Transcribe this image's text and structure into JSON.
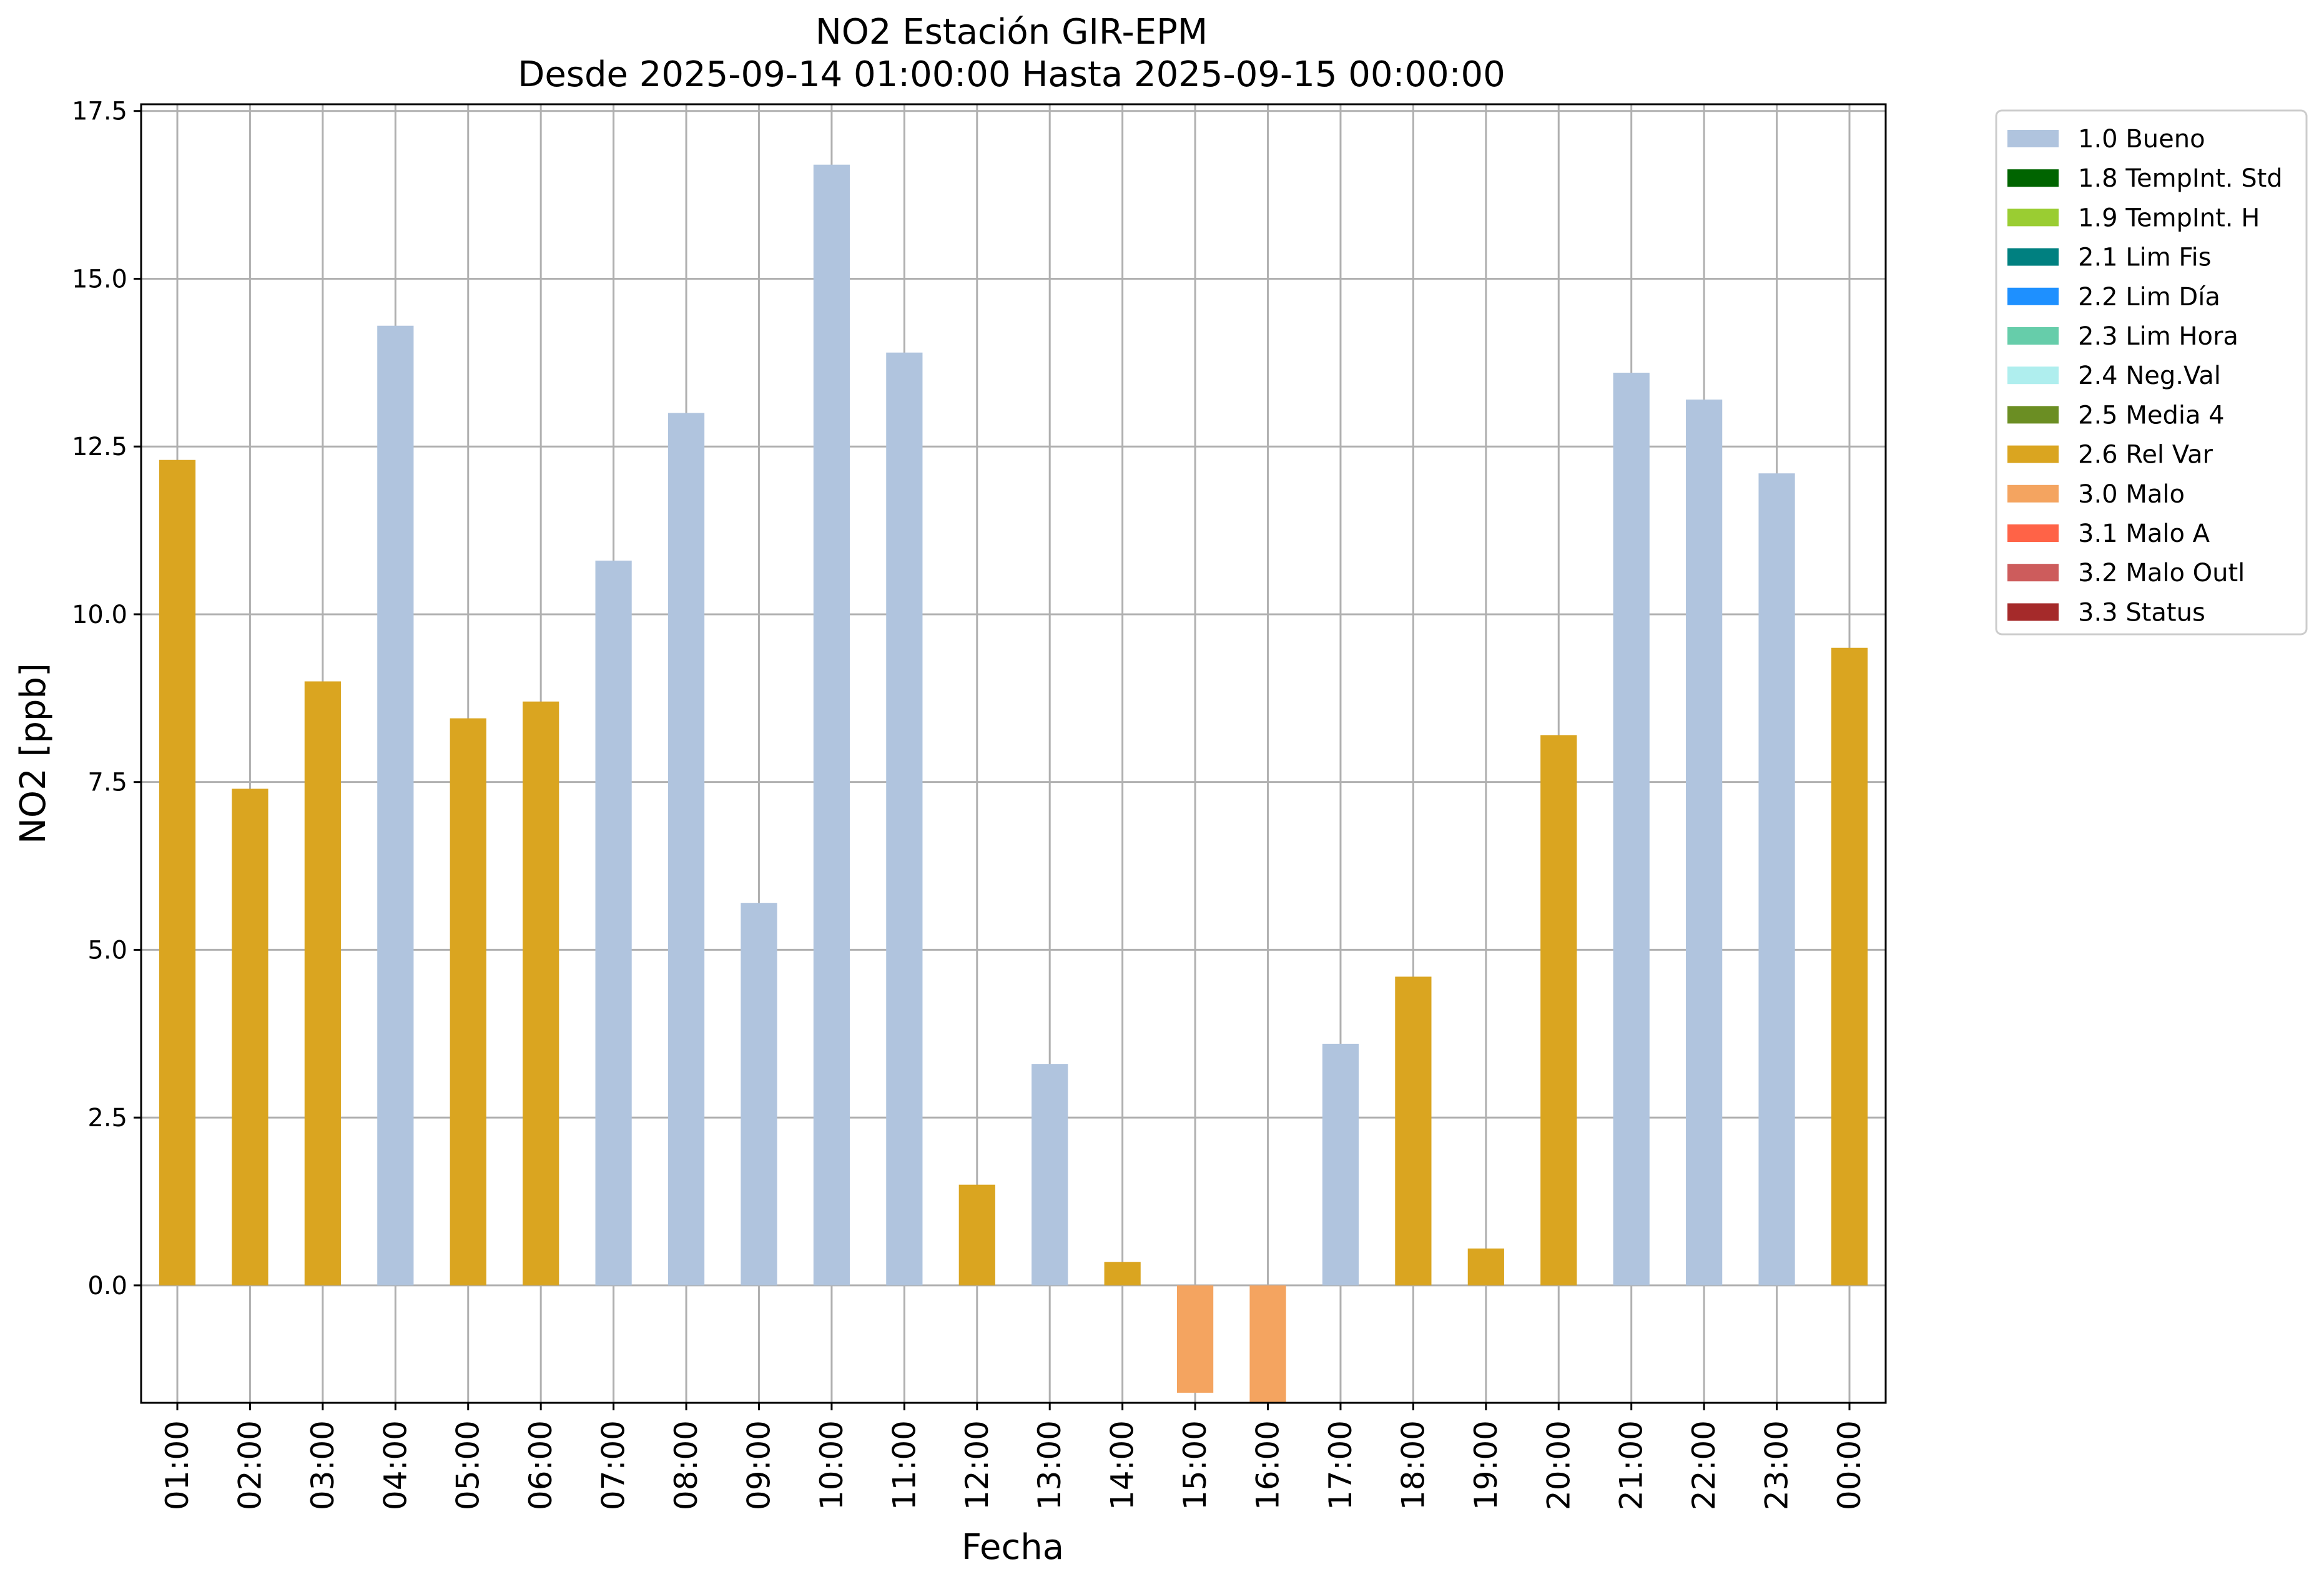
{
  "chart_data": {
    "type": "bar",
    "title": "NO2 Estación GIR-EPM",
    "subtitle": "Desde 2025-09-14 01:00:00 Hasta 2025-09-15 00:00:00",
    "xlabel": "Fecha",
    "ylabel": "NO2 [ppb]",
    "ylim": [
      -1.75,
      17.6
    ],
    "yticks": [
      "0.0",
      "2.5",
      "5.0",
      "7.5",
      "10.0",
      "12.5",
      "15.0",
      "17.5"
    ],
    "grid": true,
    "legend_position": "outside-right",
    "categories": [
      "01:00",
      "02:00",
      "03:00",
      "04:00",
      "05:00",
      "06:00",
      "07:00",
      "08:00",
      "09:00",
      "10:00",
      "11:00",
      "12:00",
      "13:00",
      "14:00",
      "15:00",
      "16:00",
      "17:00",
      "18:00",
      "19:00",
      "20:00",
      "21:00",
      "22:00",
      "23:00",
      "00:00"
    ],
    "values": [
      12.3,
      7.4,
      9.0,
      14.3,
      8.45,
      8.7,
      10.8,
      13.0,
      5.7,
      16.7,
      13.9,
      1.5,
      3.3,
      0.35,
      -1.6,
      -1.75,
      3.6,
      4.6,
      0.55,
      8.2,
      13.6,
      13.2,
      12.1,
      9.5
    ],
    "flags": [
      "2.6 Rel Var",
      "2.6 Rel Var",
      "2.6 Rel Var",
      "1.0 Bueno",
      "2.6 Rel Var",
      "2.6 Rel Var",
      "1.0 Bueno",
      "1.0 Bueno",
      "1.0 Bueno",
      "1.0 Bueno",
      "1.0 Bueno",
      "2.6 Rel Var",
      "1.0 Bueno",
      "2.6 Rel Var",
      "3.0 Malo",
      "3.0 Malo",
      "1.0 Bueno",
      "2.6 Rel Var",
      "2.6 Rel Var",
      "2.6 Rel Var",
      "1.0 Bueno",
      "1.0 Bueno",
      "1.0 Bueno",
      "2.6 Rel Var"
    ],
    "legend": [
      {
        "label": "1.0 Bueno",
        "color": "#b0c4de"
      },
      {
        "label": "1.8 TempInt. Std",
        "color": "#006400"
      },
      {
        "label": "1.9 TempInt. H",
        "color": "#9acd32"
      },
      {
        "label": "2.1 Lim Fis",
        "color": "#008080"
      },
      {
        "label": "2.2 Lim Día",
        "color": "#1e90ff"
      },
      {
        "label": "2.3 Lim Hora",
        "color": "#66cdaa"
      },
      {
        "label": "2.4 Neg.Val",
        "color": "#afeeee"
      },
      {
        "label": "2.5 Media 4",
        "color": "#6b8e23"
      },
      {
        "label": "2.6 Rel Var",
        "color": "#daa520"
      },
      {
        "label": "3.0 Malo",
        "color": "#f4a460"
      },
      {
        "label": "3.1 Malo A",
        "color": "#ff6347"
      },
      {
        "label": "3.2 Malo Outl",
        "color": "#cd5c5c"
      },
      {
        "label": "3.3 Status",
        "color": "#a52a2a"
      }
    ]
  }
}
